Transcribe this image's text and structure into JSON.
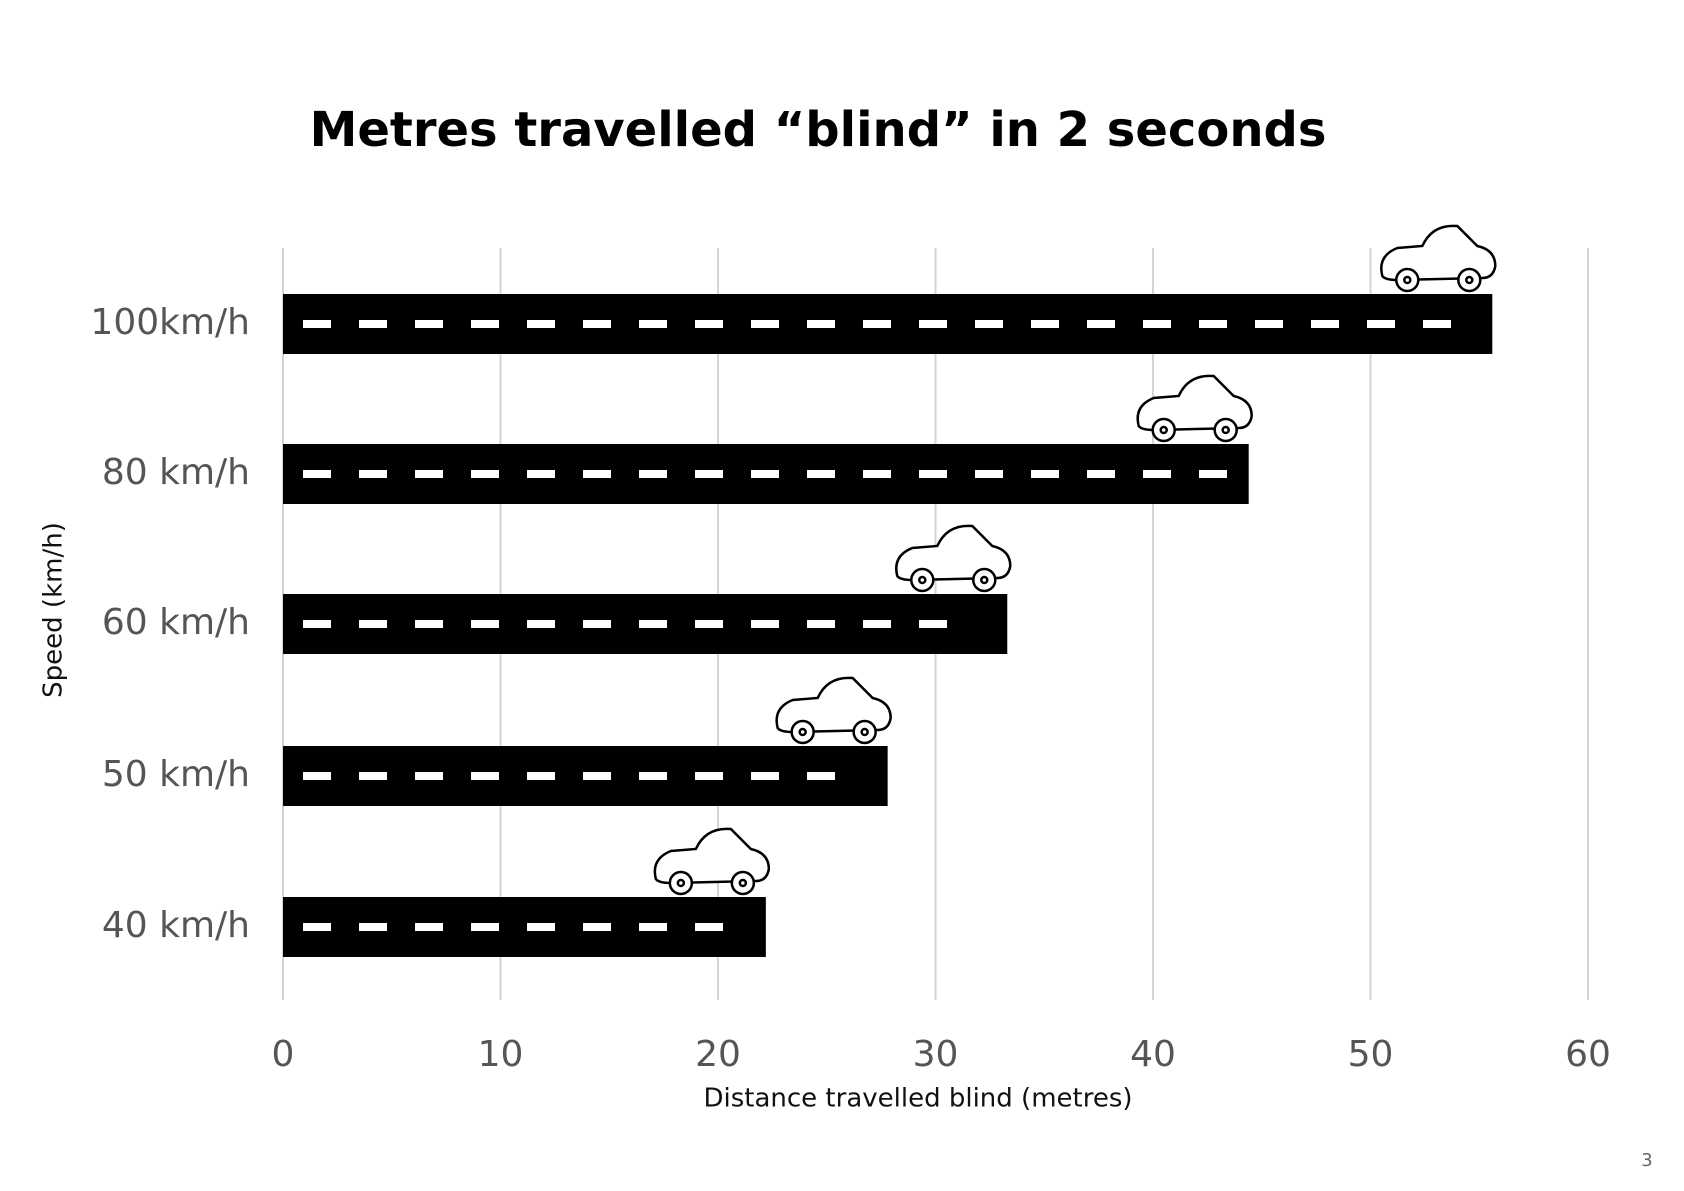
{
  "chart_data": {
    "type": "bar",
    "orientation": "horizontal",
    "title": "Metres travelled “blind” in 2 seconds",
    "x_label": "Distance travelled blind (metres)",
    "y_label": "Speed (km/h)",
    "categories": [
      "100km/h",
      "80 km/h",
      "60 km/h",
      "50 km/h",
      "40 km/h"
    ],
    "values": [
      55.6,
      44.4,
      33.3,
      27.8,
      22.2
    ],
    "color": "#000000",
    "xlim": [
      0,
      60
    ],
    "xticks": [
      0,
      10,
      20,
      30,
      40,
      50,
      60
    ],
    "grid": true
  },
  "page_number": "3"
}
